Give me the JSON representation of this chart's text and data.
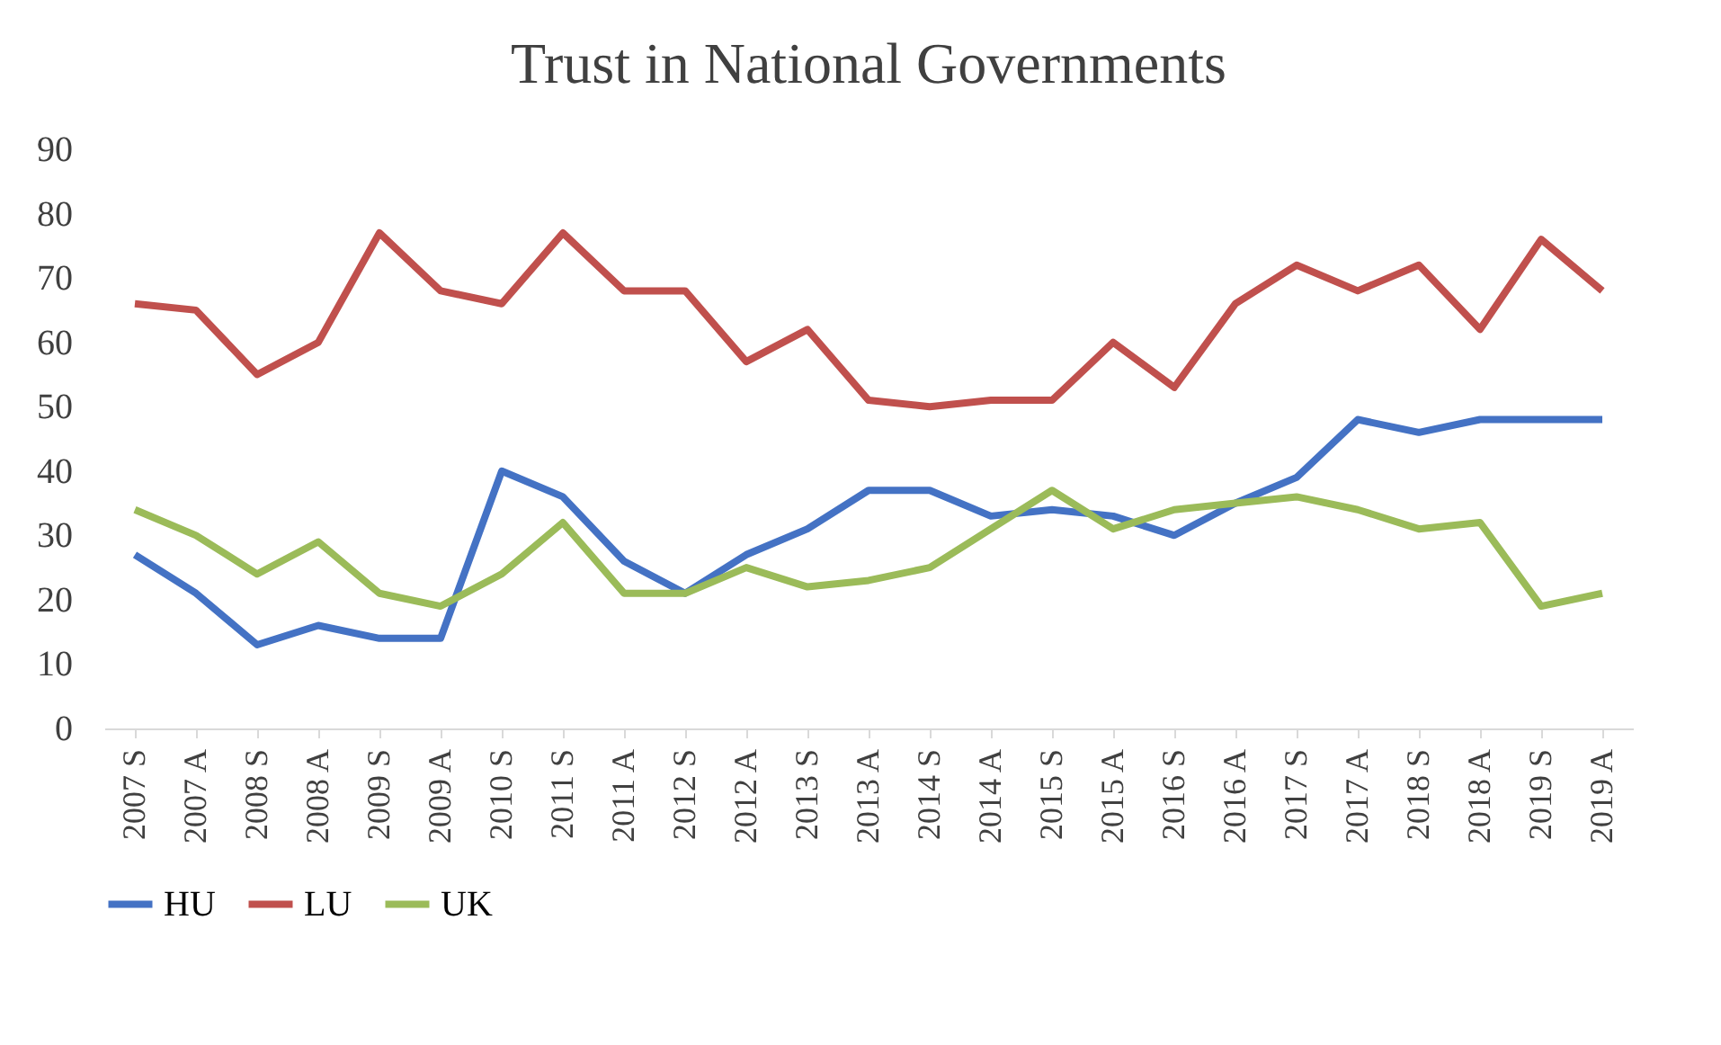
{
  "chart_data": {
    "type": "line",
    "title": "Trust in National Governments",
    "categories": [
      "2007 S",
      "2007 A",
      "2008 S",
      "2008 A",
      "2009 S",
      "2009 A",
      "2010 S",
      "2011 S",
      "2011 A",
      "2012 S",
      "2012 A",
      "2013 S",
      "2013 A",
      "2014 S",
      "2014 A",
      "2015 S",
      "2015 A",
      "2016 S",
      "2016 A",
      "2017 S",
      "2017 A",
      "2018 S",
      "2018 A",
      "2019 S",
      "2019 A"
    ],
    "series": [
      {
        "name": "HU",
        "color": "#4472c4",
        "values": [
          27,
          21,
          13,
          16,
          14,
          14,
          40,
          36,
          26,
          21,
          27,
          31,
          37,
          37,
          33,
          34,
          33,
          30,
          35,
          39,
          48,
          46,
          48,
          48,
          48
        ]
      },
      {
        "name": "LU",
        "color": "#c0504d",
        "values": [
          66,
          65,
          55,
          60,
          77,
          68,
          66,
          77,
          68,
          68,
          57,
          62,
          51,
          50,
          51,
          51,
          60,
          53,
          66,
          72,
          68,
          72,
          62,
          76,
          68
        ]
      },
      {
        "name": "UK",
        "color": "#9bbb59",
        "values": [
          34,
          30,
          24,
          29,
          21,
          19,
          24,
          32,
          21,
          21,
          25,
          22,
          23,
          25,
          31,
          37,
          31,
          34,
          35,
          36,
          34,
          31,
          32,
          19,
          21
        ]
      }
    ],
    "ylim": [
      0,
      90
    ],
    "yticks": [
      0,
      10,
      20,
      30,
      40,
      50,
      60,
      70,
      80,
      90
    ],
    "grid": false,
    "legend": "bottom",
    "marker": "none",
    "line_style": "solid"
  }
}
